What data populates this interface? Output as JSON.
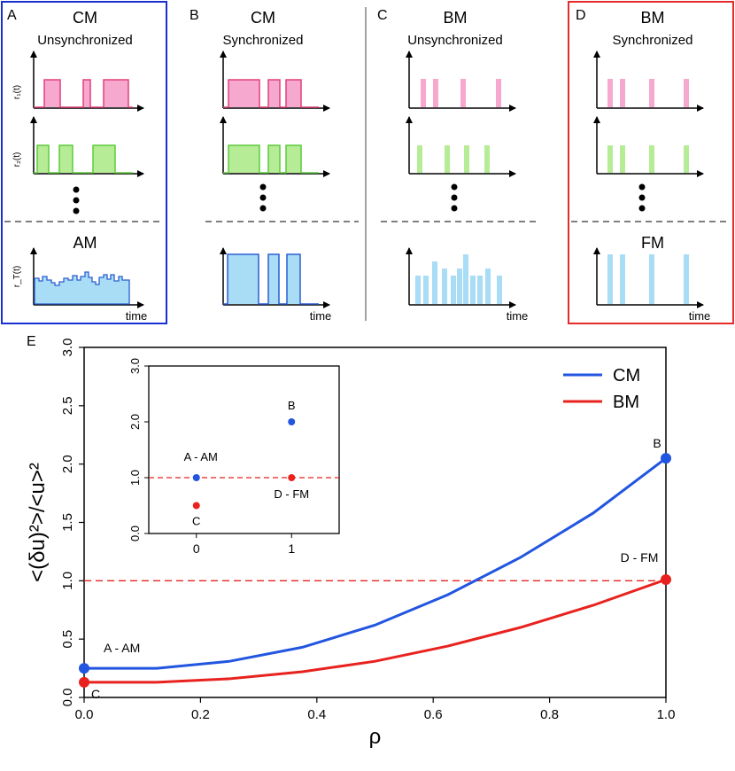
{
  "colors": {
    "cm_line": "#2255e0",
    "bm_line": "#e8221e",
    "panel_a_border": "#1a2fd1",
    "panel_d_border": "#e52b2b",
    "r1_fill": "#f7a8cf",
    "r1_stroke": "#e0407a",
    "r2_fill": "#b5ec95",
    "r2_stroke": "#5ccc3c",
    "rt_fill": "#a9dcf5",
    "rt_stroke": "#2a5fd0",
    "ref_line": "#e8221e"
  },
  "panels": [
    {
      "letter": "A",
      "title": "CM",
      "subtitle": "Unsynchronized",
      "bottom_title": "AM"
    },
    {
      "letter": "B",
      "title": "CM",
      "subtitle": "Synchronized",
      "bottom_title": ""
    },
    {
      "letter": "C",
      "title": "BM",
      "subtitle": "Unsynchronized",
      "bottom_title": ""
    },
    {
      "letter": "D",
      "title": "BM",
      "subtitle": "Synchronized",
      "bottom_title": "FM"
    }
  ],
  "signal_labels": {
    "r1": "r₁(t)",
    "r2": "r₂(t)",
    "rt": "r_T(t)",
    "time": "time"
  },
  "chart_data": [
    {
      "id": "E",
      "panel_letter": "E",
      "type": "line",
      "xlabel": "ρ",
      "ylabel": "<(δu)²>/<u>²",
      "xlim": [
        0,
        1
      ],
      "ylim": [
        0,
        3
      ],
      "xticks": [
        "0.0",
        "0.2",
        "0.4",
        "0.6",
        "0.8",
        "1.0"
      ],
      "xtick_values": [
        0,
        0.2,
        0.4,
        0.6,
        0.8,
        1.0
      ],
      "yticks": [
        "0.0",
        "0.5",
        "1.0",
        "1.5",
        "2.0",
        "2.5",
        "3.0"
      ],
      "ytick_values": [
        0,
        0.5,
        1.0,
        1.5,
        2.0,
        2.5,
        3.0
      ],
      "reference_line": 1.0,
      "legend": {
        "position": "top-right",
        "entries": [
          "CM",
          "BM"
        ]
      },
      "series": [
        {
          "name": "CM",
          "x": [
            0,
            0.125,
            0.25,
            0.375,
            0.5,
            0.625,
            0.75,
            0.875,
            1.0
          ],
          "y": [
            0.25,
            0.25,
            0.31,
            0.43,
            0.62,
            0.88,
            1.2,
            1.58,
            2.05
          ]
        },
        {
          "name": "BM",
          "x": [
            0,
            0.125,
            0.25,
            0.375,
            0.5,
            0.625,
            0.75,
            0.875,
            1.0
          ],
          "y": [
            0.13,
            0.13,
            0.16,
            0.22,
            0.31,
            0.44,
            0.6,
            0.79,
            1.01
          ]
        }
      ],
      "points": [
        {
          "series": "CM",
          "x": 0,
          "y": 0.25,
          "label": "A - AM"
        },
        {
          "series": "BM",
          "x": 0,
          "y": 0.13,
          "label": "C"
        },
        {
          "series": "CM",
          "x": 1.0,
          "y": 2.05,
          "label": "B"
        },
        {
          "series": "BM",
          "x": 1.0,
          "y": 1.01,
          "label": "D - FM"
        }
      ]
    },
    {
      "id": "inset",
      "type": "scatter",
      "xlim": [
        -0.5,
        1.5
      ],
      "ylim": [
        0,
        3
      ],
      "xticks": [
        "0",
        "1"
      ],
      "xtick_values": [
        0,
        1
      ],
      "yticks": [
        "0.0",
        "1.0",
        "2.0",
        "3.0"
      ],
      "ytick_values": [
        0,
        1.0,
        2.0,
        3.0
      ],
      "reference_line": 1.0,
      "points": [
        {
          "series": "CM",
          "x": 0,
          "y": 1.0,
          "label": "A - AM"
        },
        {
          "series": "BM",
          "x": 0,
          "y": 0.5,
          "label": "C"
        },
        {
          "series": "CM",
          "x": 1,
          "y": 2.0,
          "label": "B"
        },
        {
          "series": "BM",
          "x": 1,
          "y": 1.0,
          "label": "D - FM"
        }
      ]
    }
  ]
}
